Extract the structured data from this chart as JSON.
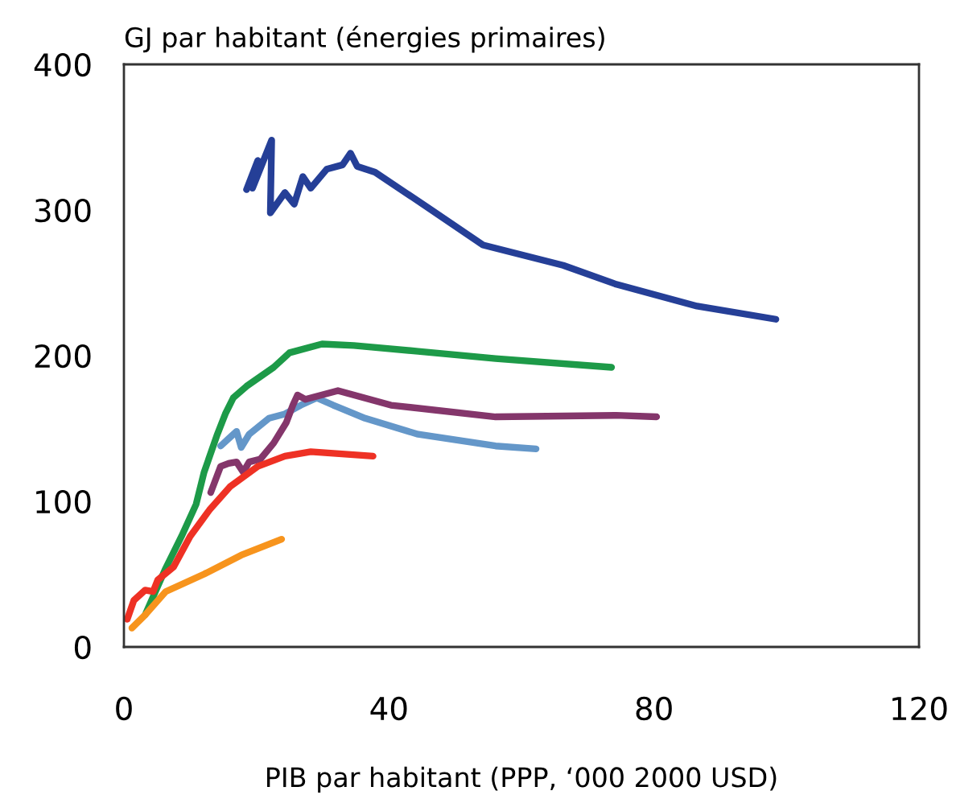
{
  "chart_data": {
    "type": "line",
    "ylabel": "GJ par habitant (énergies primaires)",
    "xlabel": "PIB par habitant (PPP, ‘000 2000 USD)",
    "xlim": [
      0,
      120
    ],
    "xticks": [
      0,
      40,
      80,
      120
    ],
    "ylim": [
      0,
      400
    ],
    "yticks": [
      0,
      100,
      200,
      300,
      400
    ],
    "grid": false,
    "legend": false,
    "marker": "none",
    "line_style": "solid",
    "series": [
      {
        "color": "#253f97",
        "x": [
          18.5,
          20.2,
          19.4,
          22.3,
          22.1,
          24.3,
          25.7,
          27.0,
          28.2,
          30.6,
          33.0,
          34.2,
          35.2,
          37.9,
          46.1,
          54.2,
          66.3,
          74.3,
          86.5,
          98.4
        ],
        "values": [
          314,
          334,
          315,
          348,
          298,
          312,
          304,
          323,
          315,
          328,
          331,
          339,
          330,
          326,
          301,
          276,
          262,
          249,
          234,
          225
        ]
      },
      {
        "color": "#1d9a48",
        "x": [
          3.2,
          6.3,
          8.7,
          10.9,
          12.1,
          14.1,
          15.3,
          16.5,
          18.5,
          22.6,
          25.0,
          29.9,
          34.7,
          44.4,
          56.1,
          73.6
        ],
        "values": [
          22,
          54,
          76,
          98,
          120,
          146,
          160,
          171,
          179,
          192,
          202,
          208,
          207,
          203,
          198,
          192
        ]
      },
      {
        "color": "#6497c9",
        "x": [
          14.6,
          15.8,
          17.0,
          17.7,
          18.9,
          21.9,
          24.3,
          26.7,
          29.1,
          31.6,
          36.4,
          44.4,
          56.1,
          62.2
        ],
        "values": [
          138,
          143,
          148,
          137,
          146,
          157,
          160,
          166,
          171,
          166,
          157,
          146,
          138,
          136
        ]
      },
      {
        "color": "#84366b",
        "x": [
          13.1,
          14.6,
          15.8,
          17.0,
          18.0,
          18.9,
          20.6,
          22.6,
          24.5,
          25.5,
          26.2,
          27.4,
          32.3,
          40.3,
          56.1,
          74.3,
          80.4
        ],
        "values": [
          106,
          124,
          126,
          127,
          120,
          127,
          129,
          140,
          154,
          166,
          173,
          170,
          176,
          166,
          158,
          159,
          158
        ]
      },
      {
        "color": "#ee3124",
        "x": [
          0.5,
          1.5,
          3.2,
          4.4,
          5.1,
          7.5,
          10.0,
          12.9,
          16.0,
          20.2,
          24.3,
          28.2,
          37.6
        ],
        "values": [
          19,
          32,
          39,
          38,
          46,
          55,
          76,
          94,
          110,
          124,
          131,
          134,
          131
        ]
      },
      {
        "color": "#f7941d",
        "x": [
          1.2,
          3.2,
          6.3,
          12.1,
          17.7,
          23.8
        ],
        "values": [
          13,
          22,
          38,
          50,
          63,
          74
        ]
      }
    ]
  }
}
